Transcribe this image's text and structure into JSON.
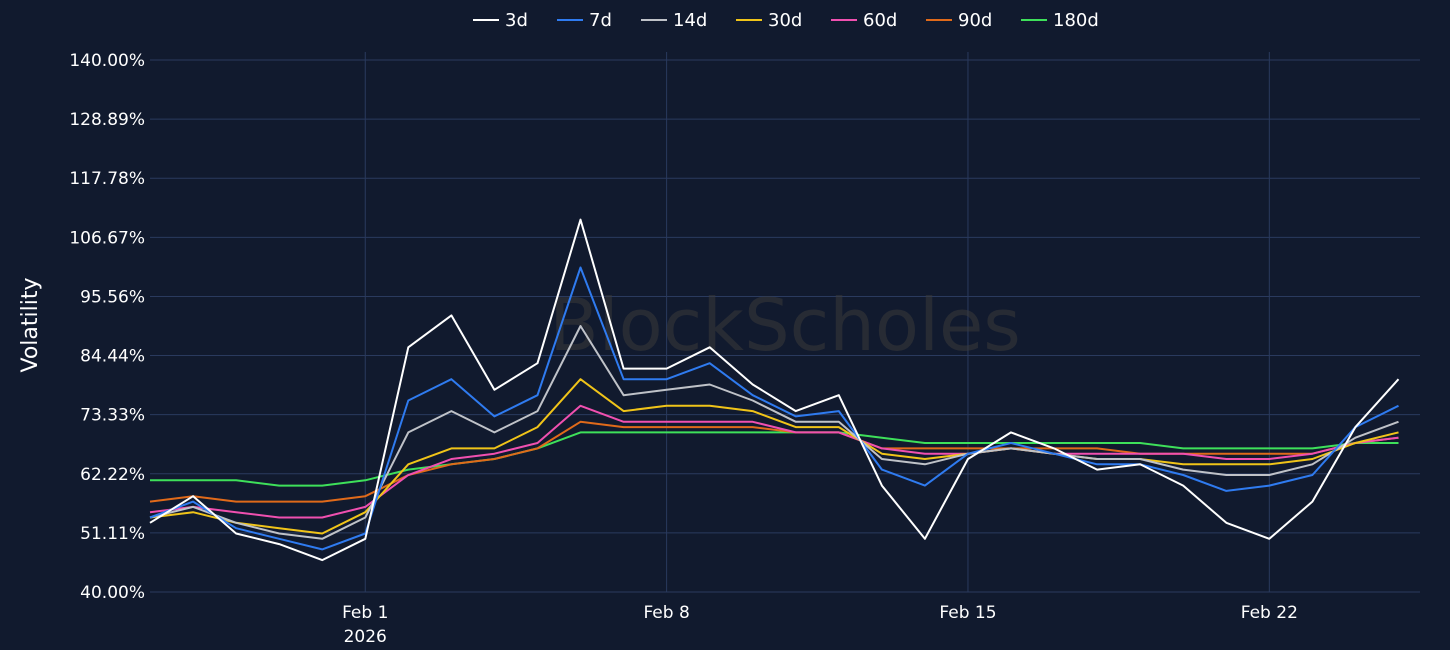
{
  "chart_data": {
    "type": "line",
    "ylabel": "Volatility",
    "ylim": [
      40,
      140
    ],
    "y_ticks": [
      "40.00%",
      "51.11%",
      "62.22%",
      "73.33%",
      "84.44%",
      "95.56%",
      "106.67%",
      "117.78%",
      "128.89%",
      "140.00%"
    ],
    "x_range": [
      "2026-01-27T00:00",
      "2026-02-25T12:00"
    ],
    "x_ticks": [
      {
        "date": "2026-02-01",
        "label": "Feb 1",
        "sublabel": "2026"
      },
      {
        "date": "2026-02-08",
        "label": "Feb 8",
        "sublabel": ""
      },
      {
        "date": "2026-02-15",
        "label": "Feb 15",
        "sublabel": ""
      },
      {
        "date": "2026-02-22",
        "label": "Feb 22",
        "sublabel": ""
      }
    ],
    "grid": true,
    "legend_position": "top-center",
    "watermark": "BlockScholes",
    "x": [
      "2026-01-27",
      "2026-01-28",
      "2026-01-29",
      "2026-01-30",
      "2026-01-31",
      "2026-02-01",
      "2026-02-02",
      "2026-02-03",
      "2026-02-04",
      "2026-02-05",
      "2026-02-06",
      "2026-02-07",
      "2026-02-08",
      "2026-02-09",
      "2026-02-10",
      "2026-02-11",
      "2026-02-12",
      "2026-02-13",
      "2026-02-14",
      "2026-02-15",
      "2026-02-16",
      "2026-02-17",
      "2026-02-18",
      "2026-02-19",
      "2026-02-20",
      "2026-02-21",
      "2026-02-22",
      "2026-02-23",
      "2026-02-24",
      "2026-02-25"
    ],
    "series": [
      {
        "name": "3d",
        "color": "#ffffff",
        "values": [
          53,
          58,
          51,
          49,
          46,
          50,
          86,
          92,
          78,
          83,
          110,
          82,
          82,
          86,
          79,
          74,
          77,
          60,
          50,
          65,
          70,
          67,
          63,
          64,
          60,
          53,
          50,
          57,
          71,
          80
        ]
      },
      {
        "name": "7d",
        "color": "#2f7bf0",
        "values": [
          54,
          57,
          52,
          50,
          48,
          51,
          76,
          80,
          73,
          77,
          101,
          80,
          80,
          83,
          77,
          73,
          74,
          63,
          60,
          66,
          68,
          66,
          64,
          64,
          62,
          59,
          60,
          62,
          71,
          75
        ]
      },
      {
        "name": "14d",
        "color": "#bfc2c8",
        "values": [
          54,
          56,
          53,
          51,
          50,
          54,
          70,
          74,
          70,
          74,
          90,
          77,
          78,
          79,
          76,
          72,
          72,
          65,
          64,
          66,
          67,
          66,
          65,
          65,
          63,
          62,
          62,
          64,
          69,
          72
        ]
      },
      {
        "name": "30d",
        "color": "#f0c419",
        "values": [
          54,
          55,
          53,
          52,
          51,
          55,
          64,
          67,
          67,
          71,
          80,
          74,
          75,
          75,
          74,
          71,
          71,
          66,
          65,
          66,
          67,
          66,
          65,
          65,
          64,
          64,
          64,
          65,
          68,
          70
        ]
      },
      {
        "name": "60d",
        "color": "#f050b0",
        "values": [
          55,
          56,
          55,
          54,
          54,
          56,
          62,
          65,
          66,
          68,
          75,
          72,
          72,
          72,
          72,
          70,
          70,
          67,
          66,
          66,
          67,
          66,
          66,
          66,
          66,
          65,
          65,
          66,
          68,
          69
        ]
      },
      {
        "name": "90d",
        "color": "#e06a1a",
        "values": [
          57,
          58,
          57,
          57,
          57,
          58,
          62,
          64,
          65,
          67,
          72,
          71,
          71,
          71,
          71,
          70,
          70,
          67,
          67,
          67,
          67,
          67,
          67,
          66,
          66,
          66,
          66,
          66,
          68,
          69
        ]
      },
      {
        "name": "180d",
        "color": "#3ee05a",
        "values": [
          61,
          61,
          61,
          60,
          60,
          61,
          63,
          64,
          65,
          67,
          70,
          70,
          70,
          70,
          70,
          70,
          70,
          69,
          68,
          68,
          68,
          68,
          68,
          68,
          67,
          67,
          67,
          67,
          68,
          68
        ]
      }
    ]
  }
}
